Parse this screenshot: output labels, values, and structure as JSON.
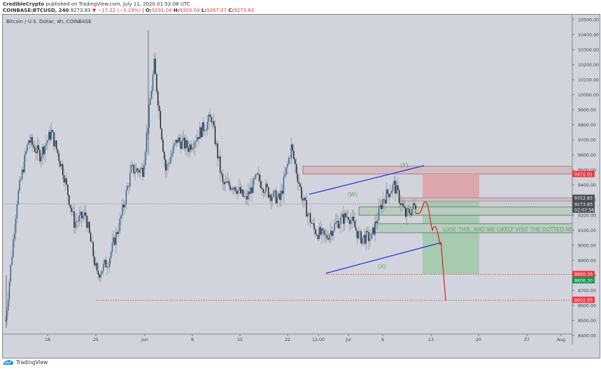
{
  "header": {
    "author": "CredibleCrypto",
    "published": "published on TradingView.com, July 11, 2020 01:52:08 UTC",
    "symbol": "COINBASE:BTCUSD, 240",
    "last": "9273.83",
    "change": "−17.22 (−0.19%)",
    "o_label": "O:",
    "o": "9291.04",
    "h_label": "H:",
    "h": "9303.04",
    "l_label": "L:",
    "l": "9267.07",
    "c_label": "C:",
    "c": "9273.83"
  },
  "chart_title": "Bitcoin / U.S. Dollar, 4h, COINBASE",
  "annotation": "LOSE THIS, AND WE LIKELY VISIT THE DOTTED RE",
  "wave_labels": [
    "(W)",
    "(X)",
    "(Y)"
  ],
  "price_tags": [
    {
      "value": "9472.91",
      "color": "#f23645"
    },
    {
      "value": "9312.83",
      "color": "#4a4e57"
    },
    {
      "value": "9273.83",
      "color": "#4a4e57"
    },
    {
      "value": "02:07:56",
      "color": "#4a4e57"
    },
    {
      "value": "8806.39",
      "color": "#f23645"
    },
    {
      "value": "8806.30",
      "color": "#089950"
    },
    {
      "value": "8632.93",
      "color": "#f23645"
    }
  ],
  "footer": {
    "brand": "TradingView"
  },
  "colors": {
    "bg": "#d1d4dc",
    "up": "#2f5f8f",
    "down": "#1a1a1a",
    "wick": "#777777",
    "red": "#e53935",
    "green_text": "#4caf50",
    "channel": "#2233dd"
  },
  "chart_data": {
    "type": "candlestick",
    "title": "Bitcoin / U.S. Dollar, 4h, COINBASE",
    "xlabel": "",
    "ylabel": "",
    "y_ticks": [
      10500,
      10400,
      10300,
      10200,
      10100,
      10000,
      9900,
      9800,
      9700,
      9600,
      9500,
      9400,
      9300,
      9200,
      9100,
      9000,
      8900,
      8800,
      8700,
      8600,
      8500,
      8400
    ],
    "x_ticks": [
      "18",
      "25",
      "Jun",
      "8",
      "15",
      "22",
      "12:00",
      "Jul",
      "6",
      "13",
      "20",
      "27",
      "Aug"
    ],
    "ylim": [
      8350,
      10550
    ],
    "approx_close_path": [
      {
        "x": "May 12",
        "close": 8500
      },
      {
        "x": "May 14",
        "close": 9300
      },
      {
        "x": "May 15",
        "close": 9700
      },
      {
        "x": "May 17",
        "close": 9600
      },
      {
        "x": "May 18",
        "close": 9750
      },
      {
        "x": "May 20",
        "close": 9500
      },
      {
        "x": "May 22",
        "close": 9150
      },
      {
        "x": "May 23",
        "close": 9200
      },
      {
        "x": "May 25",
        "close": 8800
      },
      {
        "x": "May 26",
        "close": 8900
      },
      {
        "x": "May 27",
        "close": 9150
      },
      {
        "x": "May 29",
        "close": 9500
      },
      {
        "x": "Jun 1",
        "close": 9500
      },
      {
        "x": "Jun 2",
        "close": 10200
      },
      {
        "x": "Jun 3",
        "close": 9500
      },
      {
        "x": "Jun 5",
        "close": 9700
      },
      {
        "x": "Jun 7",
        "close": 9650
      },
      {
        "x": "Jun 9",
        "close": 9750
      },
      {
        "x": "Jun 11",
        "close": 9850
      },
      {
        "x": "Jun 12",
        "close": 9400
      },
      {
        "x": "Jun 14",
        "close": 9400
      },
      {
        "x": "Jun 15",
        "close": 9300
      },
      {
        "x": "Jun 17",
        "close": 9450
      },
      {
        "x": "Jun 19",
        "close": 9350
      },
      {
        "x": "Jun 21",
        "close": 9300
      },
      {
        "x": "Jun 22",
        "close": 9650
      },
      {
        "x": "Jun 24",
        "close": 9300
      },
      {
        "x": "Jun 26",
        "close": 9100
      },
      {
        "x": "Jun 28",
        "close": 9050
      },
      {
        "x": "Jun 30",
        "close": 9150
      },
      {
        "x": "Jul 1",
        "close": 9200
      },
      {
        "x": "Jul 3",
        "close": 9050
      },
      {
        "x": "Jul 5",
        "close": 9050
      },
      {
        "x": "Jul 7",
        "close": 9300
      },
      {
        "x": "Jul 8",
        "close": 9400
      },
      {
        "x": "Jul 9",
        "close": 9200
      },
      {
        "x": "Jul 10",
        "close": 9273.83
      }
    ],
    "levels": {
      "resistance_zone": [
        9472.91,
        9530
      ],
      "current": 9273.83,
      "target1": 8806.39,
      "target2": 8632.93,
      "stop": 9472.91,
      "entry": 9312.83
    },
    "annotations": [
      "(W)",
      "(X)",
      "(Y)",
      "LOSE THIS, AND WE LIKELY VISIT THE DOTTED RE"
    ]
  }
}
